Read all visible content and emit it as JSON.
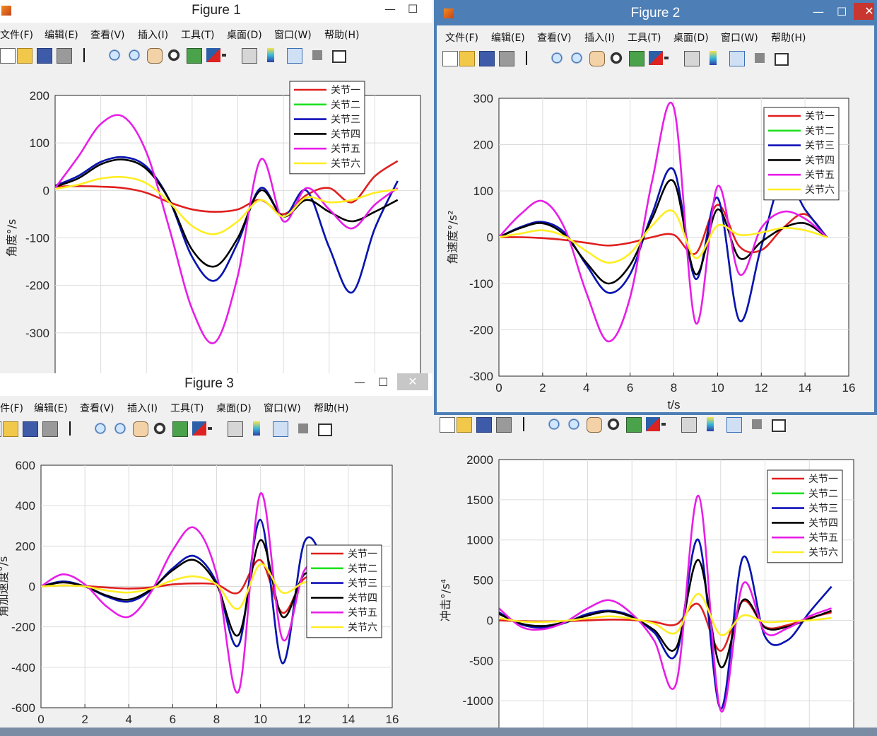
{
  "colors": {
    "joint1": "#e01f1f",
    "joint2": "#1fe01f",
    "joint3": "#1010b8",
    "joint4": "#000000",
    "joint5": "#e81de8",
    "joint6": "#ffee22",
    "active_titlebar": "#4d7fb6"
  },
  "menu": [
    "文件(F)",
    "编辑(E)",
    "查看(V)",
    "插入(I)",
    "工具(T)",
    "桌面(D)",
    "窗口(W)",
    "帮助(H)"
  ],
  "menu_fig3": [
    "件(F)",
    "编辑(E)",
    "查看(V)",
    "插入(I)",
    "工具(T)",
    "桌面(D)",
    "窗口(W)",
    "帮助(H)"
  ],
  "window_controls": {
    "minimize": "—",
    "maximize": "☐",
    "close": "✕"
  },
  "toolbar_icons": [
    "new-figure-icon",
    "open-file-icon",
    "save-icon",
    "print-icon",
    "pointer-icon",
    "zoom-in-icon",
    "zoom-out-icon",
    "pan-hand-icon",
    "rotate-3d-icon",
    "data-cursor-icon",
    "brush-icon",
    "brush-dropdown-icon",
    "link-plot-icon",
    "colorbar-icon",
    "legend-icon",
    "hide-plot-tools-icon",
    "show-plot-tools-icon"
  ],
  "figures": {
    "fig1": {
      "title": "Figure 1"
    },
    "fig2": {
      "title": "Figure 2"
    },
    "fig3": {
      "title": "Figure 3"
    },
    "fig4": {
      "title": ""
    }
  },
  "chart_data": [
    {
      "id": "fig1",
      "type": "line",
      "ylabel": "角度°/s",
      "xlabel": "",
      "xlim": [
        0,
        16
      ],
      "ylim": [
        -400,
        200
      ],
      "yticks": [
        200,
        100,
        0,
        -100,
        -200,
        -300
      ],
      "xticks": [],
      "grid": true,
      "legend_position": "top-right",
      "series": [
        {
          "name": "关节一",
          "x": [
            0,
            1,
            2,
            3,
            4,
            5,
            6,
            7,
            8,
            9,
            10,
            11,
            12,
            13,
            14,
            15
          ],
          "y": [
            8,
            9,
            8,
            5,
            -5,
            -25,
            -40,
            -45,
            -40,
            -20,
            -50,
            -10,
            5,
            -25,
            30,
            62
          ]
        },
        {
          "name": "关节二",
          "x": [
            0,
            1,
            2,
            3,
            4,
            5,
            6,
            7,
            8,
            9,
            10,
            11,
            12,
            13,
            14,
            15
          ],
          "y": [
            10,
            30,
            60,
            70,
            50,
            -20,
            -140,
            -190,
            -110,
            5,
            -55,
            0,
            -120,
            -215,
            -80,
            20
          ]
        },
        {
          "name": "关节三",
          "x": [
            0,
            1,
            2,
            3,
            4,
            5,
            6,
            7,
            8,
            9,
            10,
            11,
            12,
            13,
            14,
            15
          ],
          "y": [
            10,
            30,
            60,
            70,
            50,
            -20,
            -140,
            -190,
            -110,
            5,
            -55,
            0,
            -120,
            -215,
            -80,
            20
          ]
        },
        {
          "name": "关节四",
          "x": [
            0,
            1,
            2,
            3,
            4,
            5,
            6,
            7,
            8,
            9,
            10,
            11,
            12,
            13,
            14,
            15
          ],
          "y": [
            8,
            25,
            55,
            65,
            45,
            -20,
            -125,
            -160,
            -100,
            0,
            -55,
            -20,
            -45,
            -65,
            -45,
            -20
          ]
        },
        {
          "name": "关节五",
          "x": [
            0,
            1,
            2,
            3,
            4,
            5,
            6,
            7,
            8,
            9,
            10,
            11,
            12,
            13,
            14,
            15
          ],
          "y": [
            5,
            70,
            140,
            155,
            80,
            -80,
            -250,
            -320,
            -180,
            65,
            -65,
            5,
            -40,
            -80,
            -30,
            5
          ]
        },
        {
          "name": "关节六",
          "x": [
            0,
            1,
            2,
            3,
            4,
            5,
            6,
            7,
            8,
            9,
            10,
            11,
            12,
            13,
            14,
            15
          ],
          "y": [
            3,
            12,
            25,
            28,
            15,
            -25,
            -75,
            -92,
            -65,
            -20,
            -55,
            -15,
            -25,
            -20,
            -5,
            2
          ]
        }
      ]
    },
    {
      "id": "fig2",
      "type": "line",
      "ylabel": "角速度°/s²",
      "xlabel": "t/s",
      "xlim": [
        0,
        16
      ],
      "ylim": [
        -300,
        300
      ],
      "yticks": [
        300,
        200,
        100,
        0,
        -100,
        -200,
        -300
      ],
      "xticks": [
        0,
        2,
        4,
        6,
        8,
        10,
        12,
        14,
        16
      ],
      "grid": true,
      "legend_position": "top-right",
      "series": [
        {
          "name": "关节一",
          "x": [
            0,
            1,
            2,
            3,
            4,
            5,
            6,
            7,
            8,
            9,
            10,
            11,
            12,
            13,
            14,
            15
          ],
          "y": [
            0,
            0,
            -2,
            -6,
            -12,
            -18,
            -12,
            0,
            5,
            -35,
            70,
            -20,
            -28,
            20,
            50,
            0
          ]
        },
        {
          "name": "关节二",
          "x": [
            0,
            1,
            2,
            3,
            4,
            5,
            6,
            7,
            8,
            9,
            10,
            11,
            12,
            13,
            14,
            15
          ],
          "y": [
            0,
            22,
            33,
            10,
            -60,
            -120,
            -80,
            50,
            145,
            -90,
            85,
            -180,
            -20,
            130,
            60,
            0
          ]
        },
        {
          "name": "关节三",
          "x": [
            0,
            1,
            2,
            3,
            4,
            5,
            6,
            7,
            8,
            9,
            10,
            11,
            12,
            13,
            14,
            15
          ],
          "y": [
            0,
            22,
            33,
            10,
            -60,
            -120,
            -80,
            50,
            145,
            -90,
            85,
            -180,
            -20,
            130,
            60,
            0
          ]
        },
        {
          "name": "关节四",
          "x": [
            0,
            1,
            2,
            3,
            4,
            5,
            6,
            7,
            8,
            9,
            10,
            11,
            12,
            13,
            14,
            15
          ],
          "y": [
            0,
            20,
            30,
            5,
            -55,
            -100,
            -60,
            40,
            120,
            -80,
            60,
            -45,
            -10,
            20,
            30,
            0
          ]
        },
        {
          "name": "关节五",
          "x": [
            0,
            1,
            2,
            3,
            4,
            5,
            6,
            7,
            8,
            9,
            10,
            11,
            12,
            13,
            14,
            15
          ],
          "y": [
            0,
            50,
            78,
            20,
            -120,
            -225,
            -130,
            120,
            280,
            -185,
            110,
            -80,
            20,
            55,
            40,
            0
          ]
        },
        {
          "name": "关节六",
          "x": [
            0,
            1,
            2,
            3,
            4,
            5,
            6,
            7,
            8,
            9,
            10,
            11,
            12,
            13,
            14,
            15
          ],
          "y": [
            0,
            8,
            15,
            2,
            -30,
            -55,
            -35,
            25,
            55,
            -45,
            25,
            5,
            10,
            20,
            15,
            0
          ]
        }
      ]
    },
    {
      "id": "fig3",
      "type": "line",
      "ylabel": "角加速度°/s",
      "xlabel": "",
      "xlim": [
        0,
        16
      ],
      "ylim": [
        -600,
        600
      ],
      "yticks": [
        600,
        400,
        200,
        0,
        -200,
        -400,
        -600
      ],
      "xticks": [
        0,
        2,
        4,
        6,
        8,
        10,
        12,
        14,
        16
      ],
      "grid": true,
      "legend_position": "top-right",
      "series": [
        {
          "name": "关节一",
          "x": [
            0,
            1,
            2,
            3,
            4,
            5,
            6,
            7,
            8,
            9,
            10,
            11,
            12,
            13,
            14,
            15
          ],
          "y": [
            0,
            5,
            2,
            -5,
            -10,
            -5,
            10,
            15,
            10,
            -30,
            130,
            -130,
            40,
            20,
            -50,
            0
          ]
        },
        {
          "name": "关节二",
          "x": [
            0,
            1,
            2,
            3,
            4,
            5,
            6,
            7,
            8,
            9,
            10,
            11,
            12,
            13,
            14,
            15
          ],
          "y": [
            0,
            25,
            0,
            -50,
            -75,
            -20,
            90,
            150,
            20,
            -290,
            330,
            -380,
            220,
            100,
            -140,
            0
          ]
        },
        {
          "name": "关节三",
          "x": [
            0,
            1,
            2,
            3,
            4,
            5,
            6,
            7,
            8,
            9,
            10,
            11,
            12,
            13,
            14,
            15
          ],
          "y": [
            0,
            25,
            0,
            -50,
            -75,
            -20,
            90,
            150,
            20,
            -290,
            330,
            -380,
            220,
            100,
            -140,
            0
          ]
        },
        {
          "name": "关节四",
          "x": [
            0,
            1,
            2,
            3,
            4,
            5,
            6,
            7,
            8,
            9,
            10,
            11,
            12,
            13,
            14,
            15
          ],
          "y": [
            0,
            20,
            0,
            -45,
            -65,
            -15,
            80,
            130,
            10,
            -240,
            230,
            -150,
            60,
            30,
            -30,
            0
          ]
        },
        {
          "name": "关节五",
          "x": [
            0,
            1,
            2,
            3,
            4,
            5,
            6,
            7,
            8,
            9,
            10,
            11,
            12,
            13,
            14,
            15
          ],
          "y": [
            0,
            60,
            10,
            -100,
            -150,
            -30,
            180,
            290,
            60,
            -520,
            460,
            -260,
            80,
            100,
            -40,
            0
          ]
        },
        {
          "name": "关节六",
          "x": [
            0,
            1,
            2,
            3,
            4,
            5,
            6,
            7,
            8,
            9,
            10,
            11,
            12,
            13,
            14,
            15
          ],
          "y": [
            0,
            5,
            0,
            -20,
            -30,
            -10,
            30,
            50,
            10,
            -110,
            110,
            -30,
            20,
            10,
            -10,
            0
          ]
        }
      ]
    },
    {
      "id": "fig4",
      "type": "line",
      "ylabel": "冲击°/s⁴",
      "xlabel": "",
      "xlim": [
        0,
        16
      ],
      "ylim": [
        -1500,
        2000
      ],
      "yticks": [
        2000,
        1500,
        1000,
        500,
        0,
        -500,
        -1000
      ],
      "xticks": [],
      "grid": true,
      "legend_position": "top-right",
      "series": [
        {
          "name": "关节一",
          "x": [
            0,
            1,
            2,
            3,
            4,
            5,
            6,
            7,
            8,
            9,
            10,
            11,
            12,
            13,
            14,
            15
          ],
          "y": [
            0,
            -10,
            -15,
            -10,
            0,
            10,
            5,
            -20,
            -50,
            200,
            -380,
            240,
            -80,
            -60,
            30,
            100
          ]
        },
        {
          "name": "关节二",
          "x": [
            0,
            1,
            2,
            3,
            4,
            5,
            6,
            7,
            8,
            9,
            10,
            11,
            12,
            13,
            14,
            15
          ],
          "y": [
            100,
            -50,
            -90,
            -30,
            80,
            120,
            50,
            -150,
            -420,
            1000,
            -1100,
            780,
            -200,
            -250,
            100,
            420
          ]
        },
        {
          "name": "关节三",
          "x": [
            0,
            1,
            2,
            3,
            4,
            5,
            6,
            7,
            8,
            9,
            10,
            11,
            12,
            13,
            14,
            15
          ],
          "y": [
            100,
            -50,
            -90,
            -30,
            80,
            120,
            50,
            -150,
            -420,
            1000,
            -1100,
            780,
            -200,
            -250,
            100,
            420
          ]
        },
        {
          "name": "关节四",
          "x": [
            0,
            1,
            2,
            3,
            4,
            5,
            6,
            7,
            8,
            9,
            10,
            11,
            12,
            13,
            14,
            15
          ],
          "y": [
            80,
            -40,
            -70,
            -20,
            60,
            110,
            40,
            -120,
            -340,
            750,
            -580,
            250,
            -90,
            -80,
            20,
            120
          ]
        },
        {
          "name": "关节五",
          "x": [
            0,
            1,
            2,
            3,
            4,
            5,
            6,
            7,
            8,
            9,
            10,
            11,
            12,
            13,
            14,
            15
          ],
          "y": [
            150,
            -80,
            -110,
            -20,
            150,
            250,
            80,
            -250,
            -780,
            1550,
            -1120,
            450,
            -150,
            -100,
            50,
            150
          ]
        },
        {
          "name": "关节六",
          "x": [
            0,
            1,
            2,
            3,
            4,
            5,
            6,
            7,
            8,
            9,
            10,
            11,
            12,
            13,
            14,
            15
          ],
          "y": [
            30,
            -15,
            -20,
            -5,
            25,
            50,
            20,
            -40,
            -150,
            330,
            -180,
            60,
            -20,
            -10,
            0,
            30
          ]
        }
      ]
    }
  ]
}
